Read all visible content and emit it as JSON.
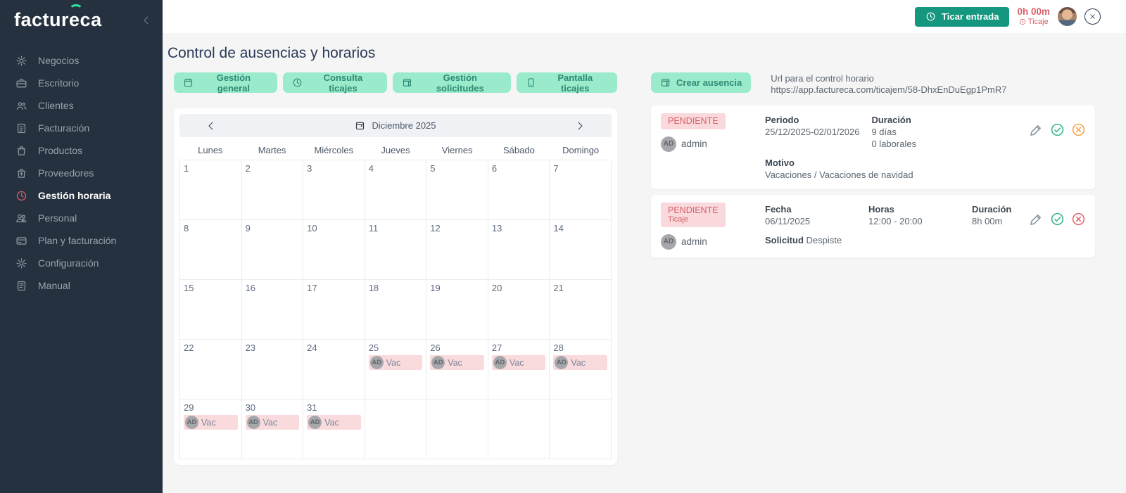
{
  "brand": {
    "logo_pre": "factur",
    "logo_e": "e",
    "logo_post": "ca"
  },
  "sidebar": {
    "items": [
      {
        "label": "Negocios",
        "icon": "gear-icon",
        "active": false
      },
      {
        "label": "Escritorio",
        "icon": "briefcase-icon",
        "active": false
      },
      {
        "label": "Clientes",
        "icon": "users-icon",
        "active": false
      },
      {
        "label": "Facturación",
        "icon": "invoice-icon",
        "active": false
      },
      {
        "label": "Productos",
        "icon": "bag-icon",
        "active": false
      },
      {
        "label": "Proveedores",
        "icon": "bag-plus-icon",
        "active": false
      },
      {
        "label": "Gestión horaria",
        "icon": "clock-icon",
        "active": true
      },
      {
        "label": "Personal",
        "icon": "people-icon",
        "active": false
      },
      {
        "label": "Plan y facturación",
        "icon": "card-icon",
        "active": false
      },
      {
        "label": "Configuración",
        "icon": "gear-icon",
        "active": false
      },
      {
        "label": "Manual",
        "icon": "manual-icon",
        "active": false
      }
    ]
  },
  "topbar": {
    "clock_in_label": "Ticar entrada",
    "timer": "0h 00m",
    "timer_caption": "Ticaje"
  },
  "page": {
    "title": "Control de ausencias y horarios"
  },
  "tabs": [
    {
      "label": "Gestión general",
      "icon": "calendar-icon"
    },
    {
      "label": "Consulta ticajes",
      "icon": "clock-icon"
    },
    {
      "label": "Gestión solicitudes",
      "icon": "calendar-lines-icon"
    },
    {
      "label": "Pantalla ticajes",
      "icon": "tablet-icon"
    }
  ],
  "actions": {
    "create_absence": "Crear ausencia",
    "create_absence_icon": "calendar-lines-icon",
    "url_label": "Url para el control horario",
    "url_value": "https://app.factureca.com/ticajem/58-DhxEnDuEgp1PmR7"
  },
  "requests": [
    {
      "status": "PENDIENTE",
      "status_sub": "",
      "user_initials": "AD",
      "user": "admin",
      "fields": [
        {
          "label": "Periodo",
          "value": "25/12/2025-02/01/2026"
        },
        {
          "label": "Duración",
          "value": "9 días\n0 laborales"
        }
      ],
      "fields2": [
        {
          "label": "Motivo",
          "value": "Vacaciones / Vacaciones de navidad",
          "inline": false
        }
      ],
      "deny_color": "#f5a145"
    },
    {
      "status": "PENDIENTE",
      "status_sub": "Ticaje",
      "user_initials": "AD",
      "user": "admin",
      "fields": [
        {
          "label": "Fecha",
          "value": "06/11/2025"
        },
        {
          "label": "Horas",
          "value": "12:00 - 20:00"
        },
        {
          "label": "Duración",
          "value": "8h 00m"
        }
      ],
      "fields2": [
        {
          "label": "Solicitud",
          "value": "Despiste",
          "inline": true
        }
      ],
      "deny_color": "#dd6670"
    }
  ],
  "calendar": {
    "month_label": "Diciembre 2025",
    "weekdays": [
      "Lunes",
      "Martes",
      "Miércoles",
      "Jueves",
      "Viernes",
      "Sábado",
      "Domingo"
    ],
    "weeks": [
      [
        {
          "day": "1"
        },
        {
          "day": "2"
        },
        {
          "day": "3"
        },
        {
          "day": "4"
        },
        {
          "day": "5"
        },
        {
          "day": "6"
        },
        {
          "day": "7"
        }
      ],
      [
        {
          "day": "8"
        },
        {
          "day": "9"
        },
        {
          "day": "10"
        },
        {
          "day": "11"
        },
        {
          "day": "12"
        },
        {
          "day": "13"
        },
        {
          "day": "14"
        }
      ],
      [
        {
          "day": "15"
        },
        {
          "day": "16"
        },
        {
          "day": "17"
        },
        {
          "day": "18"
        },
        {
          "day": "19"
        },
        {
          "day": "20"
        },
        {
          "day": "21"
        }
      ],
      [
        {
          "day": "22"
        },
        {
          "day": "23"
        },
        {
          "day": "24"
        },
        {
          "day": "25",
          "event": {
            "initials": "AD",
            "label": "Vac"
          }
        },
        {
          "day": "26",
          "event": {
            "initials": "AD",
            "label": "Vac"
          }
        },
        {
          "day": "27",
          "event": {
            "initials": "AD",
            "label": "Vac"
          }
        },
        {
          "day": "28",
          "event": {
            "initials": "AD",
            "label": "Vac"
          }
        }
      ],
      [
        {
          "day": "29",
          "event": {
            "initials": "AD",
            "label": "Vac"
          }
        },
        {
          "day": "30",
          "event": {
            "initials": "AD",
            "label": "Vac"
          }
        },
        {
          "day": "31",
          "event": {
            "initials": "AD",
            "label": "Vac"
          }
        },
        {},
        {},
        {},
        {}
      ]
    ]
  },
  "colors": {
    "brand_teal": "#14977e",
    "mint": "#99ebcb",
    "mint_text": "#2f8a74",
    "accent_red": "#d95f69",
    "approve_green": "#35b789",
    "deny_orange": "#f5a145",
    "deny_red": "#dd6670",
    "sidebar_bg": "#25313f",
    "logo_arc_green": "#2de3a2"
  }
}
